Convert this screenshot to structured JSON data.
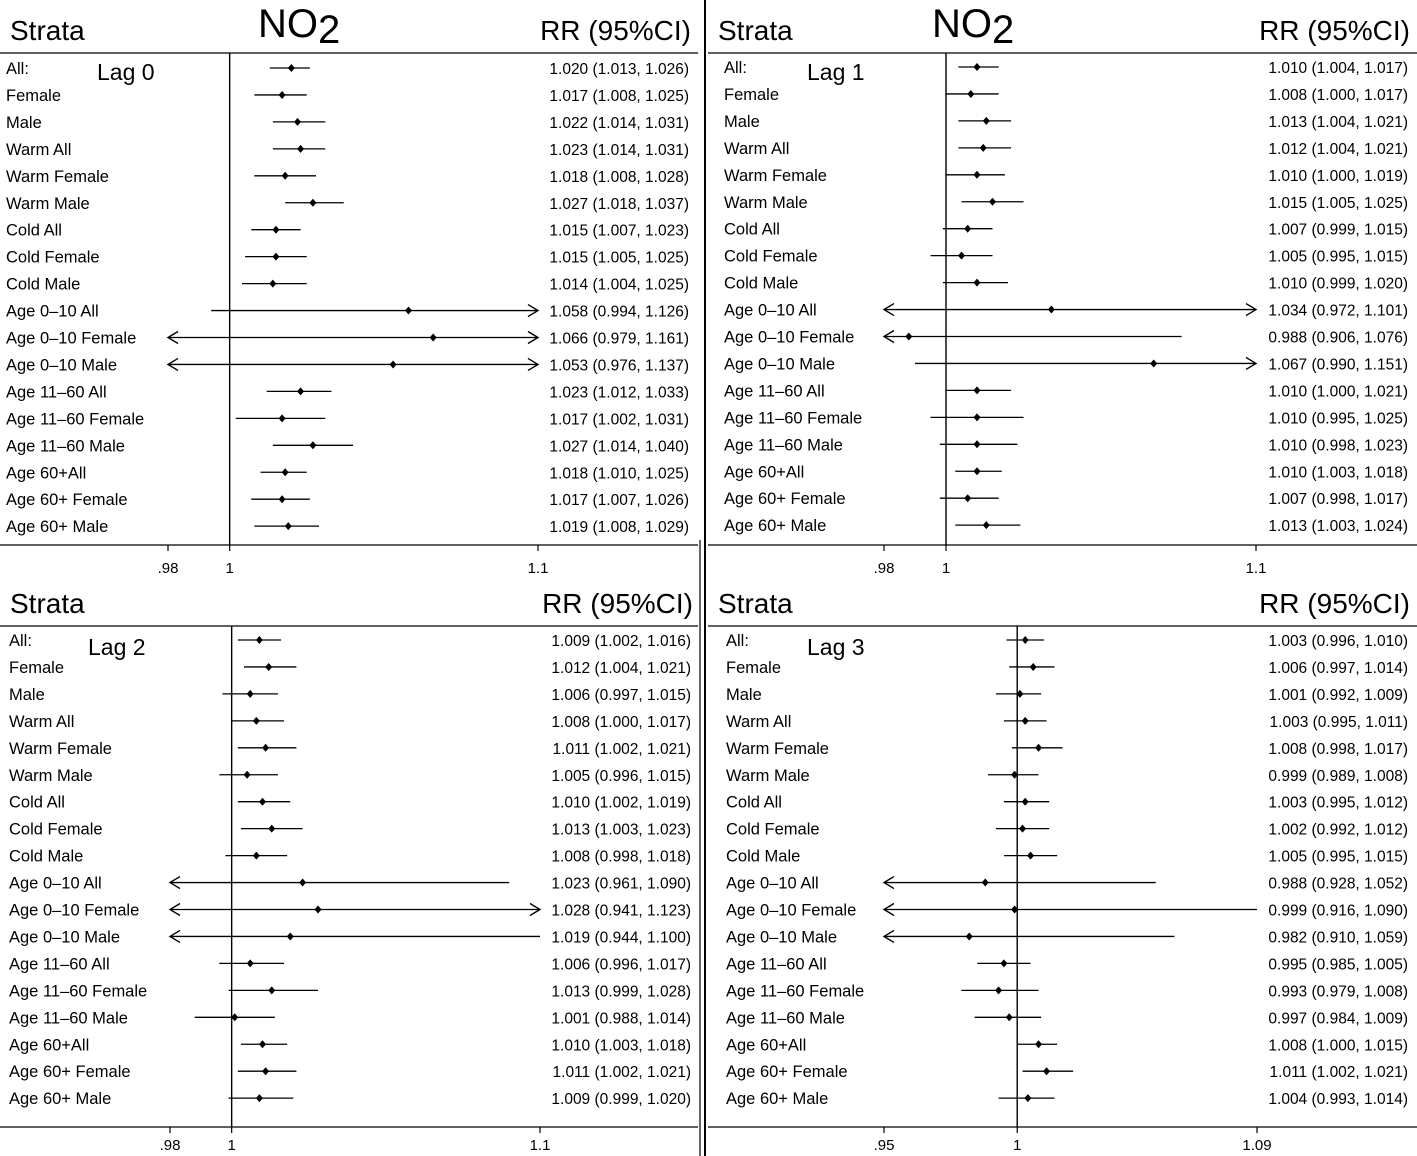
{
  "chart_data": [
    {
      "type": "forest",
      "pollutant": "NO",
      "pollutant_subscript": "2",
      "header_left": "Strata",
      "header_right": "RR (95%CI)",
      "annotation": "Lag 0",
      "xlim": [
        0.98,
        1.1
      ],
      "xticks": [
        0.98,
        1,
        1.1
      ],
      "xtick_labels": [
        ".98",
        "1",
        "1.1"
      ],
      "null_value": 1,
      "rows": [
        {
          "label": "All:",
          "rr": 1.02,
          "lo": 1.013,
          "hi": 1.026,
          "text": "1.020 (1.013, 1.026)"
        },
        {
          "label": "Female",
          "rr": 1.017,
          "lo": 1.008,
          "hi": 1.025,
          "text": "1.017 (1.008, 1.025)"
        },
        {
          "label": "Male",
          "rr": 1.022,
          "lo": 1.014,
          "hi": 1.031,
          "text": "1.022 (1.014, 1.031)"
        },
        {
          "label": "Warm All",
          "rr": 1.023,
          "lo": 1.014,
          "hi": 1.031,
          "text": "1.023 (1.014, 1.031)"
        },
        {
          "label": "Warm Female",
          "rr": 1.018,
          "lo": 1.008,
          "hi": 1.028,
          "text": "1.018 (1.008, 1.028)"
        },
        {
          "label": "Warm Male",
          "rr": 1.027,
          "lo": 1.018,
          "hi": 1.037,
          "text": "1.027 (1.018, 1.037)"
        },
        {
          "label": "Cold All",
          "rr": 1.015,
          "lo": 1.007,
          "hi": 1.023,
          "text": "1.015 (1.007, 1.023)"
        },
        {
          "label": "Cold Female",
          "rr": 1.015,
          "lo": 1.005,
          "hi": 1.025,
          "text": "1.015 (1.005, 1.025)"
        },
        {
          "label": "Cold Male",
          "rr": 1.014,
          "lo": 1.004,
          "hi": 1.025,
          "text": "1.014 (1.004, 1.025)"
        },
        {
          "label": "Age 0–10 All",
          "rr": 1.058,
          "lo": 0.994,
          "hi": 1.126,
          "text": "1.058 (0.994, 1.126)"
        },
        {
          "label": "Age 0–10 Female",
          "rr": 1.066,
          "lo": 0.979,
          "hi": 1.161,
          "text": "1.066 (0.979, 1.161)"
        },
        {
          "label": "Age 0–10 Male",
          "rr": 1.053,
          "lo": 0.976,
          "hi": 1.137,
          "text": "1.053 (0.976, 1.137)"
        },
        {
          "label": "Age 11–60 All",
          "rr": 1.023,
          "lo": 1.012,
          "hi": 1.033,
          "text": "1.023 (1.012, 1.033)"
        },
        {
          "label": "Age 11–60 Female",
          "rr": 1.017,
          "lo": 1.002,
          "hi": 1.031,
          "text": "1.017 (1.002, 1.031)"
        },
        {
          "label": "Age 11–60 Male",
          "rr": 1.027,
          "lo": 1.014,
          "hi": 1.04,
          "text": "1.027 (1.014, 1.040)"
        },
        {
          "label": "Age 60+All",
          "rr": 1.018,
          "lo": 1.01,
          "hi": 1.025,
          "text": "1.018 (1.010, 1.025)"
        },
        {
          "label": "Age 60+ Female",
          "rr": 1.017,
          "lo": 1.007,
          "hi": 1.026,
          "text": "1.017 (1.007, 1.026)"
        },
        {
          "label": "Age 60+ Male",
          "rr": 1.019,
          "lo": 1.008,
          "hi": 1.029,
          "text": "1.019 (1.008, 1.029)"
        }
      ]
    },
    {
      "type": "forest",
      "pollutant": "NO",
      "pollutant_subscript": "2",
      "header_left": "Strata",
      "header_right": "RR (95%CI)",
      "annotation": "Lag 1",
      "xlim": [
        0.98,
        1.1
      ],
      "xticks": [
        0.98,
        1,
        1.1
      ],
      "xtick_labels": [
        ".98",
        "1",
        "1.1"
      ],
      "null_value": 1,
      "rows": [
        {
          "label": "All:",
          "rr": 1.01,
          "lo": 1.004,
          "hi": 1.017,
          "text": "1.010 (1.004, 1.017)"
        },
        {
          "label": "Female",
          "rr": 1.008,
          "lo": 1.0,
          "hi": 1.017,
          "text": "1.008 (1.000, 1.017)"
        },
        {
          "label": "Male",
          "rr": 1.013,
          "lo": 1.004,
          "hi": 1.021,
          "text": "1.013 (1.004, 1.021)"
        },
        {
          "label": "Warm All",
          "rr": 1.012,
          "lo": 1.004,
          "hi": 1.021,
          "text": "1.012 (1.004, 1.021)"
        },
        {
          "label": "Warm Female",
          "rr": 1.01,
          "lo": 1.0,
          "hi": 1.019,
          "text": "1.010 (1.000, 1.019)"
        },
        {
          "label": "Warm Male",
          "rr": 1.015,
          "lo": 1.005,
          "hi": 1.025,
          "text": "1.015 (1.005, 1.025)"
        },
        {
          "label": "Cold All",
          "rr": 1.007,
          "lo": 0.999,
          "hi": 1.015,
          "text": "1.007 (0.999, 1.015)"
        },
        {
          "label": "Cold Female",
          "rr": 1.005,
          "lo": 0.995,
          "hi": 1.015,
          "text": "1.005 (0.995, 1.015)"
        },
        {
          "label": "Cold Male",
          "rr": 1.01,
          "lo": 0.999,
          "hi": 1.02,
          "text": "1.010 (0.999, 1.020)"
        },
        {
          "label": "Age 0–10 All",
          "rr": 1.034,
          "lo": 0.972,
          "hi": 1.101,
          "text": "1.034 (0.972, 1.101)"
        },
        {
          "label": "Age 0–10 Female",
          "rr": 0.988,
          "lo": 0.906,
          "hi": 1.076,
          "text": "0.988 (0.906, 1.076)"
        },
        {
          "label": "Age 0–10 Male",
          "rr": 1.067,
          "lo": 0.99,
          "hi": 1.151,
          "text": "1.067 (0.990, 1.151)"
        },
        {
          "label": "Age 11–60 All",
          "rr": 1.01,
          "lo": 1.0,
          "hi": 1.021,
          "text": "1.010 (1.000, 1.021)"
        },
        {
          "label": "Age 11–60 Female",
          "rr": 1.01,
          "lo": 0.995,
          "hi": 1.025,
          "text": "1.010 (0.995, 1.025)"
        },
        {
          "label": "Age 11–60 Male",
          "rr": 1.01,
          "lo": 0.998,
          "hi": 1.023,
          "text": "1.010 (0.998, 1.023)"
        },
        {
          "label": "Age 60+All",
          "rr": 1.01,
          "lo": 1.003,
          "hi": 1.018,
          "text": "1.010 (1.003, 1.018)"
        },
        {
          "label": "Age 60+ Female",
          "rr": 1.007,
          "lo": 0.998,
          "hi": 1.017,
          "text": "1.007 (0.998, 1.017)"
        },
        {
          "label": "Age 60+ Male",
          "rr": 1.013,
          "lo": 1.003,
          "hi": 1.024,
          "text": "1.013 (1.003, 1.024)"
        }
      ]
    },
    {
      "type": "forest",
      "header_left": "Strata",
      "header_right": "RR (95%CI)",
      "annotation": "Lag 2",
      "xlim": [
        0.98,
        1.1
      ],
      "xticks": [
        0.98,
        1,
        1.1
      ],
      "xtick_labels": [
        ".98",
        "1",
        "1.1"
      ],
      "null_value": 1,
      "rows": [
        {
          "label": "All:",
          "rr": 1.009,
          "lo": 1.002,
          "hi": 1.016,
          "text": "1.009 (1.002, 1.016)"
        },
        {
          "label": "Female",
          "rr": 1.012,
          "lo": 1.004,
          "hi": 1.021,
          "text": "1.012 (1.004, 1.021)"
        },
        {
          "label": "Male",
          "rr": 1.006,
          "lo": 0.997,
          "hi": 1.015,
          "text": "1.006 (0.997, 1.015)"
        },
        {
          "label": "Warm All",
          "rr": 1.008,
          "lo": 1.0,
          "hi": 1.017,
          "text": "1.008 (1.000, 1.017)"
        },
        {
          "label": "Warm Female",
          "rr": 1.011,
          "lo": 1.002,
          "hi": 1.021,
          "text": "1.011 (1.002, 1.021)"
        },
        {
          "label": "Warm Male",
          "rr": 1.005,
          "lo": 0.996,
          "hi": 1.015,
          "text": "1.005 (0.996, 1.015)"
        },
        {
          "label": "Cold All",
          "rr": 1.01,
          "lo": 1.002,
          "hi": 1.019,
          "text": "1.010 (1.002, 1.019)"
        },
        {
          "label": "Cold Female",
          "rr": 1.013,
          "lo": 1.003,
          "hi": 1.023,
          "text": "1.013 (1.003, 1.023)"
        },
        {
          "label": "Cold Male",
          "rr": 1.008,
          "lo": 0.998,
          "hi": 1.018,
          "text": "1.008 (0.998, 1.018)"
        },
        {
          "label": "Age 0–10 All",
          "rr": 1.023,
          "lo": 0.961,
          "hi": 1.09,
          "text": "1.023 (0.961, 1.090)"
        },
        {
          "label": "Age 0–10 Female",
          "rr": 1.028,
          "lo": 0.941,
          "hi": 1.123,
          "text": "1.028 (0.941, 1.123)"
        },
        {
          "label": "Age 0–10 Male",
          "rr": 1.019,
          "lo": 0.944,
          "hi": 1.1,
          "text": "1.019 (0.944, 1.100)"
        },
        {
          "label": "Age 11–60 All",
          "rr": 1.006,
          "lo": 0.996,
          "hi": 1.017,
          "text": "1.006 (0.996, 1.017)"
        },
        {
          "label": "Age 11–60 Female",
          "rr": 1.013,
          "lo": 0.999,
          "hi": 1.028,
          "text": "1.013 (0.999, 1.028)"
        },
        {
          "label": "Age 11–60 Male",
          "rr": 1.001,
          "lo": 0.988,
          "hi": 1.014,
          "text": "1.001 (0.988, 1.014)"
        },
        {
          "label": "Age 60+All",
          "rr": 1.01,
          "lo": 1.003,
          "hi": 1.018,
          "text": "1.010 (1.003, 1.018)"
        },
        {
          "label": "Age 60+ Female",
          "rr": 1.011,
          "lo": 1.002,
          "hi": 1.021,
          "text": "1.011 (1.002, 1.021)"
        },
        {
          "label": "Age 60+ Male",
          "rr": 1.009,
          "lo": 0.999,
          "hi": 1.02,
          "text": "1.009 (0.999, 1.020)"
        }
      ]
    },
    {
      "type": "forest",
      "header_left": "Strata",
      "header_right": "RR (95%CI)",
      "annotation": "Lag 3",
      "xlim": [
        0.95,
        1.09
      ],
      "xticks": [
        0.95,
        1,
        1.09
      ],
      "xtick_labels": [
        ".95",
        "1",
        "1.09"
      ],
      "null_value": 1,
      "rows": [
        {
          "label": "All:",
          "rr": 1.003,
          "lo": 0.996,
          "hi": 1.01,
          "text": "1.003 (0.996, 1.010)"
        },
        {
          "label": "Female",
          "rr": 1.006,
          "lo": 0.997,
          "hi": 1.014,
          "text": "1.006 (0.997, 1.014)"
        },
        {
          "label": "Male",
          "rr": 1.001,
          "lo": 0.992,
          "hi": 1.009,
          "text": "1.001 (0.992, 1.009)"
        },
        {
          "label": "Warm All",
          "rr": 1.003,
          "lo": 0.995,
          "hi": 1.011,
          "text": "1.003 (0.995, 1.011)"
        },
        {
          "label": "Warm Female",
          "rr": 1.008,
          "lo": 0.998,
          "hi": 1.017,
          "text": "1.008 (0.998, 1.017)"
        },
        {
          "label": "Warm Male",
          "rr": 0.999,
          "lo": 0.989,
          "hi": 1.008,
          "text": "0.999 (0.989, 1.008)"
        },
        {
          "label": "Cold All",
          "rr": 1.003,
          "lo": 0.995,
          "hi": 1.012,
          "text": "1.003 (0.995, 1.012)"
        },
        {
          "label": "Cold Female",
          "rr": 1.002,
          "lo": 0.992,
          "hi": 1.012,
          "text": "1.002 (0.992, 1.012)"
        },
        {
          "label": "Cold Male",
          "rr": 1.005,
          "lo": 0.995,
          "hi": 1.015,
          "text": "1.005 (0.995, 1.015)"
        },
        {
          "label": "Age 0–10 All",
          "rr": 0.988,
          "lo": 0.928,
          "hi": 1.052,
          "text": "0.988 (0.928, 1.052)"
        },
        {
          "label": "Age 0–10 Female",
          "rr": 0.999,
          "lo": 0.916,
          "hi": 1.09,
          "text": "0.999 (0.916, 1.090)"
        },
        {
          "label": "Age 0–10 Male",
          "rr": 0.982,
          "lo": 0.91,
          "hi": 1.059,
          "text": "0.982 (0.910, 1.059)"
        },
        {
          "label": "Age 11–60 All",
          "rr": 0.995,
          "lo": 0.985,
          "hi": 1.005,
          "text": "0.995 (0.985, 1.005)"
        },
        {
          "label": "Age 11–60 Female",
          "rr": 0.993,
          "lo": 0.979,
          "hi": 1.008,
          "text": "0.993 (0.979, 1.008)"
        },
        {
          "label": "Age 11–60 Male",
          "rr": 0.997,
          "lo": 0.984,
          "hi": 1.009,
          "text": "0.997 (0.984, 1.009)"
        },
        {
          "label": "Age 60+All",
          "rr": 1.008,
          "lo": 1.0,
          "hi": 1.015,
          "text": "1.008 (1.000, 1.015)"
        },
        {
          "label": "Age 60+ Female",
          "rr": 1.011,
          "lo": 1.002,
          "hi": 1.021,
          "text": "1.011 (1.002, 1.021)"
        },
        {
          "label": "Age 60+ Male",
          "rr": 1.004,
          "lo": 0.993,
          "hi": 1.014,
          "text": "1.004 (0.993, 1.014)"
        }
      ]
    }
  ]
}
